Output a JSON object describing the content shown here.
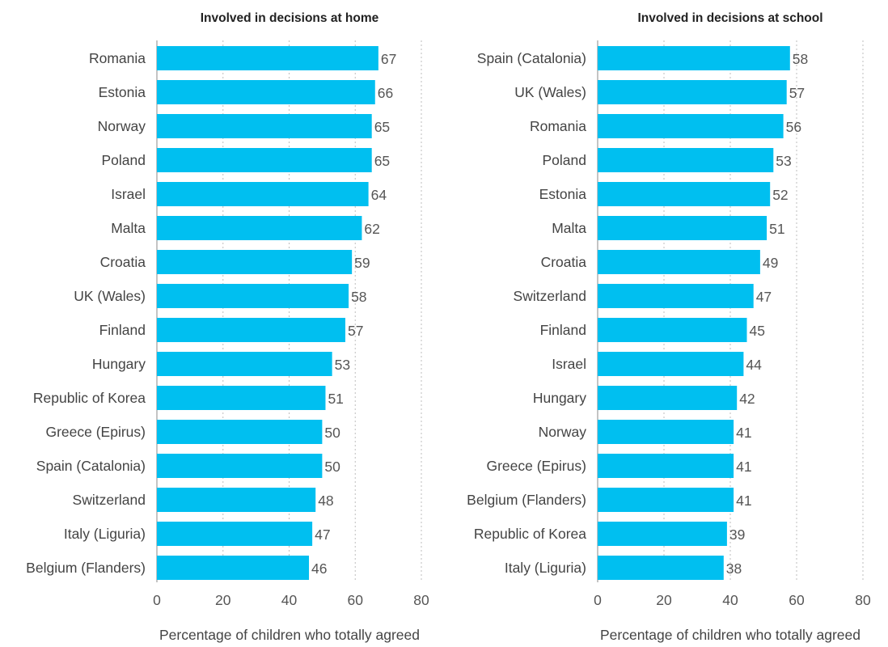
{
  "chart_data": [
    {
      "type": "bar",
      "orientation": "horizontal",
      "title": "Involved in decisions at home",
      "categories": [
        "Romania",
        "Estonia",
        "Norway",
        "Poland",
        "Israel",
        "Malta",
        "Croatia",
        "UK (Wales)",
        "Finland",
        "Hungary",
        "Republic of Korea",
        "Greece (Epirus)",
        "Spain (Catalonia)",
        "Switzerland",
        "Italy (Liguria)",
        "Belgium (Flanders)"
      ],
      "values": [
        67,
        66,
        65,
        65,
        64,
        62,
        59,
        58,
        57,
        53,
        51,
        50,
        50,
        48,
        47,
        46
      ],
      "xlabel": "Percentage of children who totally agreed",
      "ylabel": "",
      "xlim": [
        0,
        80
      ],
      "xticks": [
        0,
        20,
        40,
        60,
        80
      ],
      "grid": true,
      "bar_color": "#00BFF0"
    },
    {
      "type": "bar",
      "orientation": "horizontal",
      "title": "Involved in decisions at school",
      "categories": [
        "Spain (Catalonia)",
        "UK (Wales)",
        "Romania",
        "Poland",
        "Estonia",
        "Malta",
        "Croatia",
        "Switzerland",
        "Finland",
        "Israel",
        "Hungary",
        "Norway",
        "Greece (Epirus)",
        "Belgium (Flanders)",
        "Republic of Korea",
        "Italy (Liguria)"
      ],
      "values": [
        58,
        57,
        56,
        53,
        52,
        51,
        49,
        47,
        45,
        44,
        42,
        41,
        41,
        41,
        39,
        38
      ],
      "xlabel": "Percentage of children who totally agreed",
      "ylabel": "",
      "xlim": [
        0,
        80
      ],
      "xticks": [
        0,
        20,
        40,
        60,
        80
      ],
      "grid": true,
      "bar_color": "#00BFF0"
    }
  ]
}
